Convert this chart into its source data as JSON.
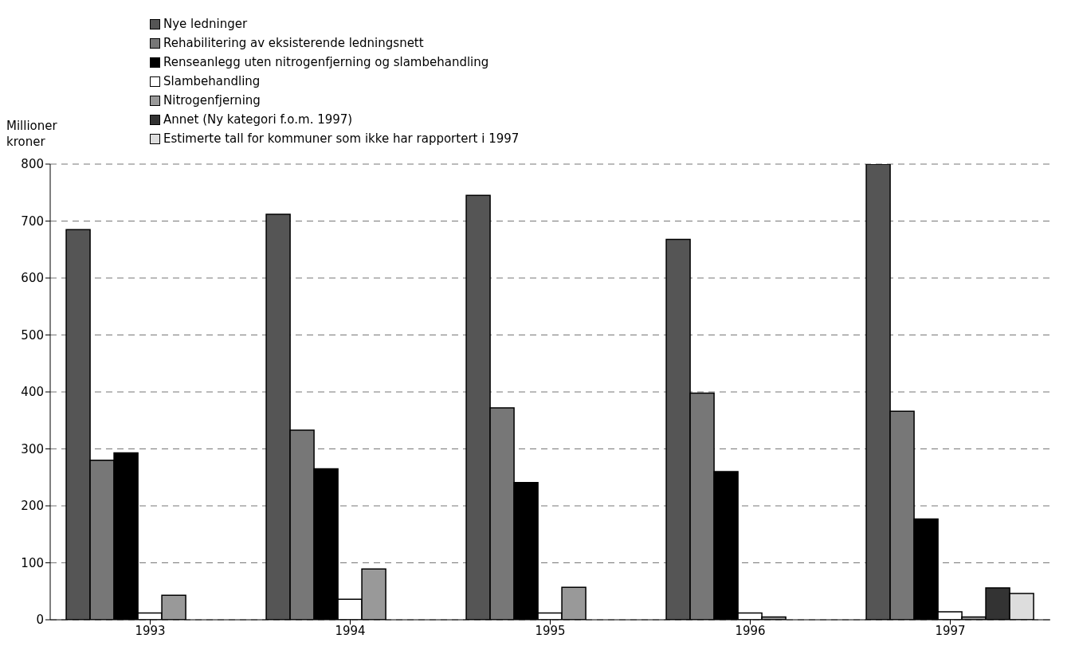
{
  "chart_data": {
    "type": "bar",
    "ylabel": "Millioner kroner",
    "categories": [
      "1993",
      "1994",
      "1995",
      "1996",
      "1997"
    ],
    "series": [
      {
        "name": "Nye ledninger",
        "color": "#555555",
        "values": [
          685,
          712,
          745,
          668,
          800
        ]
      },
      {
        "name": "Rehabilitering av eksisterende ledningsnett",
        "color": "#777777",
        "values": [
          280,
          333,
          372,
          398,
          366
        ]
      },
      {
        "name": "Renseanlegg uten nitrogenfjerning og slambehandling",
        "color": "#000000",
        "values": [
          293,
          265,
          241,
          260,
          177
        ]
      },
      {
        "name": "Slambehandling",
        "color": "#ffffff",
        "values": [
          12,
          36,
          12,
          12,
          14
        ]
      },
      {
        "name": "Nitrogenfjerning",
        "color": "#999999",
        "values": [
          43,
          89,
          57,
          5,
          5
        ]
      },
      {
        "name": "Annet (Ny kategori f.o.m. 1997)",
        "color": "#333333",
        "values": [
          null,
          null,
          null,
          null,
          56
        ]
      },
      {
        "name": "Estimerte tall for kommuner som ikke har rapportert i 1997",
        "color": "#dddddd",
        "values": [
          null,
          null,
          null,
          null,
          46
        ]
      }
    ],
    "ylim": [
      0,
      800
    ],
    "yticks": [
      0,
      100,
      200,
      300,
      400,
      500,
      600,
      700,
      800
    ],
    "grid": "y",
    "legend": "top"
  }
}
